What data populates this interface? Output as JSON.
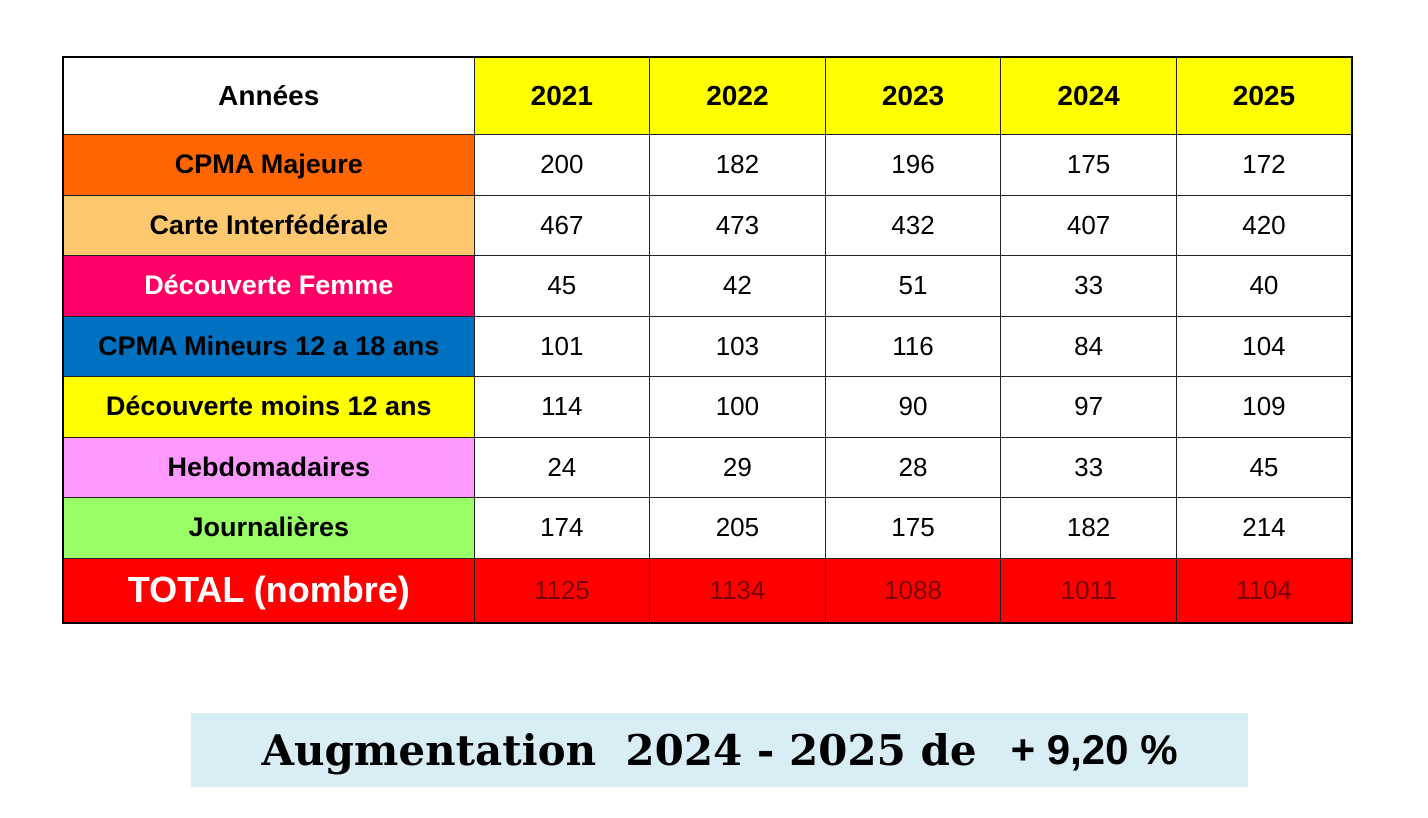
{
  "table": {
    "header": [
      "Années",
      "2021",
      "2022",
      "2023",
      "2024",
      "2025"
    ],
    "rows": [
      [
        "CPMA Majeure",
        200,
        182,
        196,
        175,
        172
      ],
      [
        "Carte Interfédérale",
        467,
        473,
        432,
        407,
        420
      ],
      [
        "Découverte Femme",
        45,
        42,
        51,
        33,
        40
      ],
      [
        "CPMA Mineurs 12 a 18 ans",
        101,
        103,
        116,
        84,
        104
      ],
      [
        "Découverte moins 12 ans",
        114,
        100,
        90,
        97,
        109
      ],
      [
        "Hebdomadaires",
        24,
        29,
        28,
        33,
        45
      ],
      [
        "Journalières",
        174,
        205,
        175,
        182,
        214
      ]
    ],
    "total": [
      "TOTAL (nombre)",
      1125,
      1134,
      1088,
      1011,
      1104
    ]
  },
  "banner": {
    "text": "Augmentation  2024 - 2025 de",
    "value": "+ 9,20 %"
  }
}
